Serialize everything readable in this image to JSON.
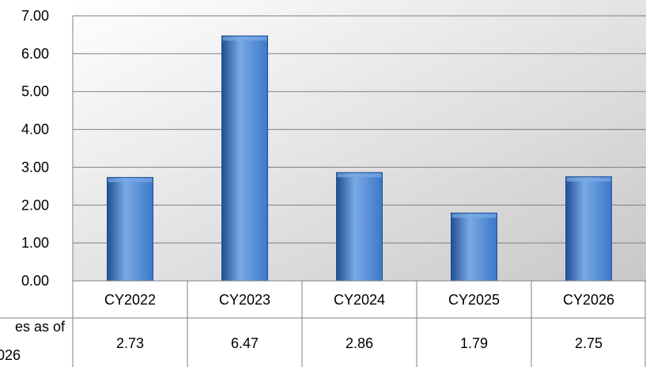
{
  "chart_data": {
    "type": "bar",
    "categories": [
      "CY2022",
      "CY2023",
      "CY2024",
      "CY2025",
      "CY2026"
    ],
    "values": [
      2.73,
      6.47,
      2.86,
      1.79,
      2.75
    ],
    "value_labels": [
      "2.73",
      "6.47",
      "2.86",
      "1.79",
      "2.75"
    ],
    "y_ticks": [
      "0.00",
      "1.00",
      "2.00",
      "3.00",
      "4.00",
      "5.00",
      "6.00",
      "7.00"
    ],
    "ylim": [
      0,
      7
    ],
    "grid": true,
    "data_table": true,
    "table_row_label": [
      "es as of",
      "026"
    ],
    "colors": {
      "bar": "#3b78c8",
      "bar_dark": "#1f4f94",
      "bar_light": "#7aa9e6",
      "plot_bg_light": "#ffffff",
      "plot_bg_dark": "#c8c8c8",
      "grid": "#808080"
    }
  }
}
